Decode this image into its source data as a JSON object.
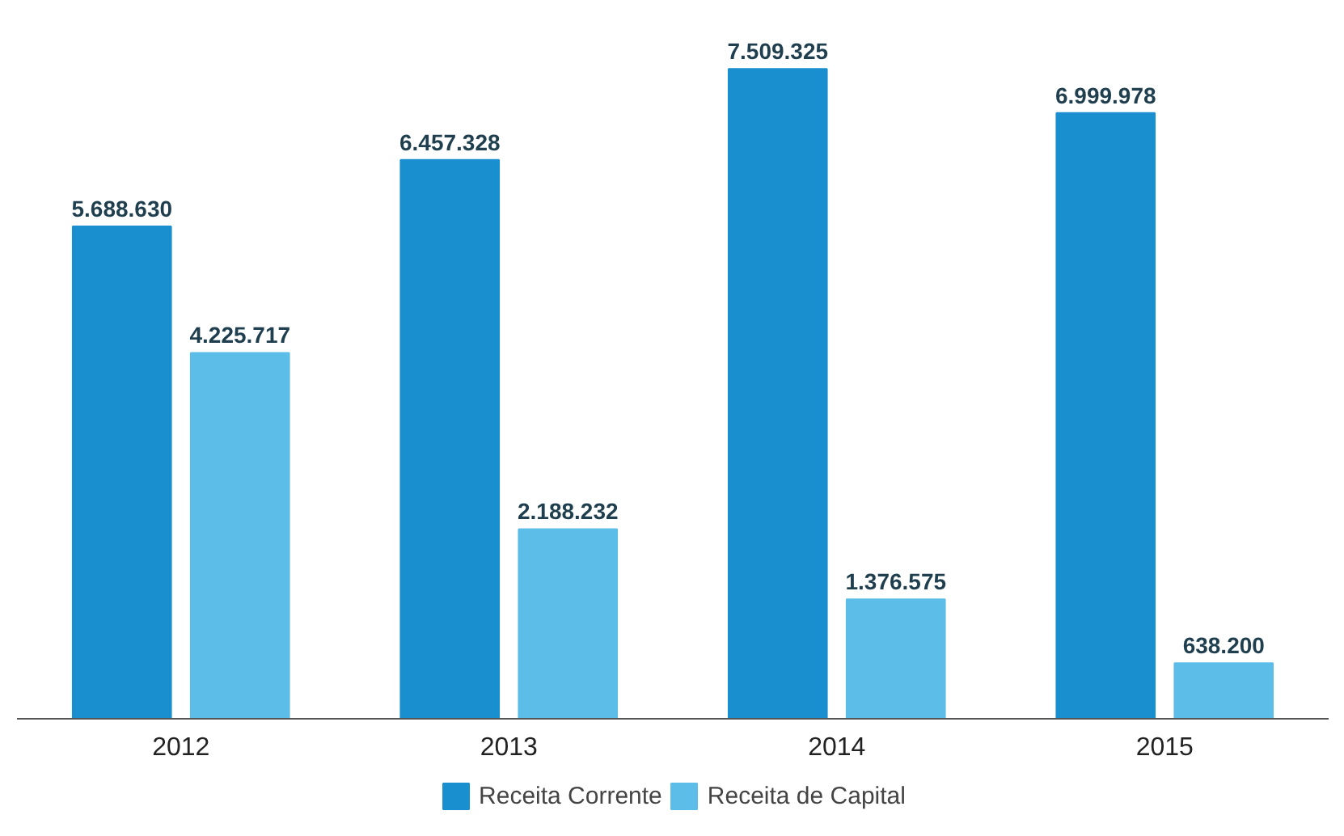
{
  "chart_data": {
    "type": "bar",
    "categories": [
      "2012",
      "2013",
      "2014",
      "2015"
    ],
    "series": [
      {
        "name": "Receita Corrente",
        "color": "#1a8fd0",
        "values": [
          5688630,
          6457328,
          7509325,
          6999978
        ],
        "value_labels": [
          "5.688.630",
          "6.457.328",
          "7.509.325",
          "6.999.978"
        ]
      },
      {
        "name": "Receita de Capital",
        "color": "#5cbde9",
        "values": [
          4225717,
          2188232,
          1376575,
          638200
        ],
        "value_labels": [
          "4.225.717",
          "2.188.232",
          "1.376.575",
          "638.200"
        ]
      }
    ],
    "tick_labels": "x",
    "grid": false,
    "legend": "bottom"
  }
}
